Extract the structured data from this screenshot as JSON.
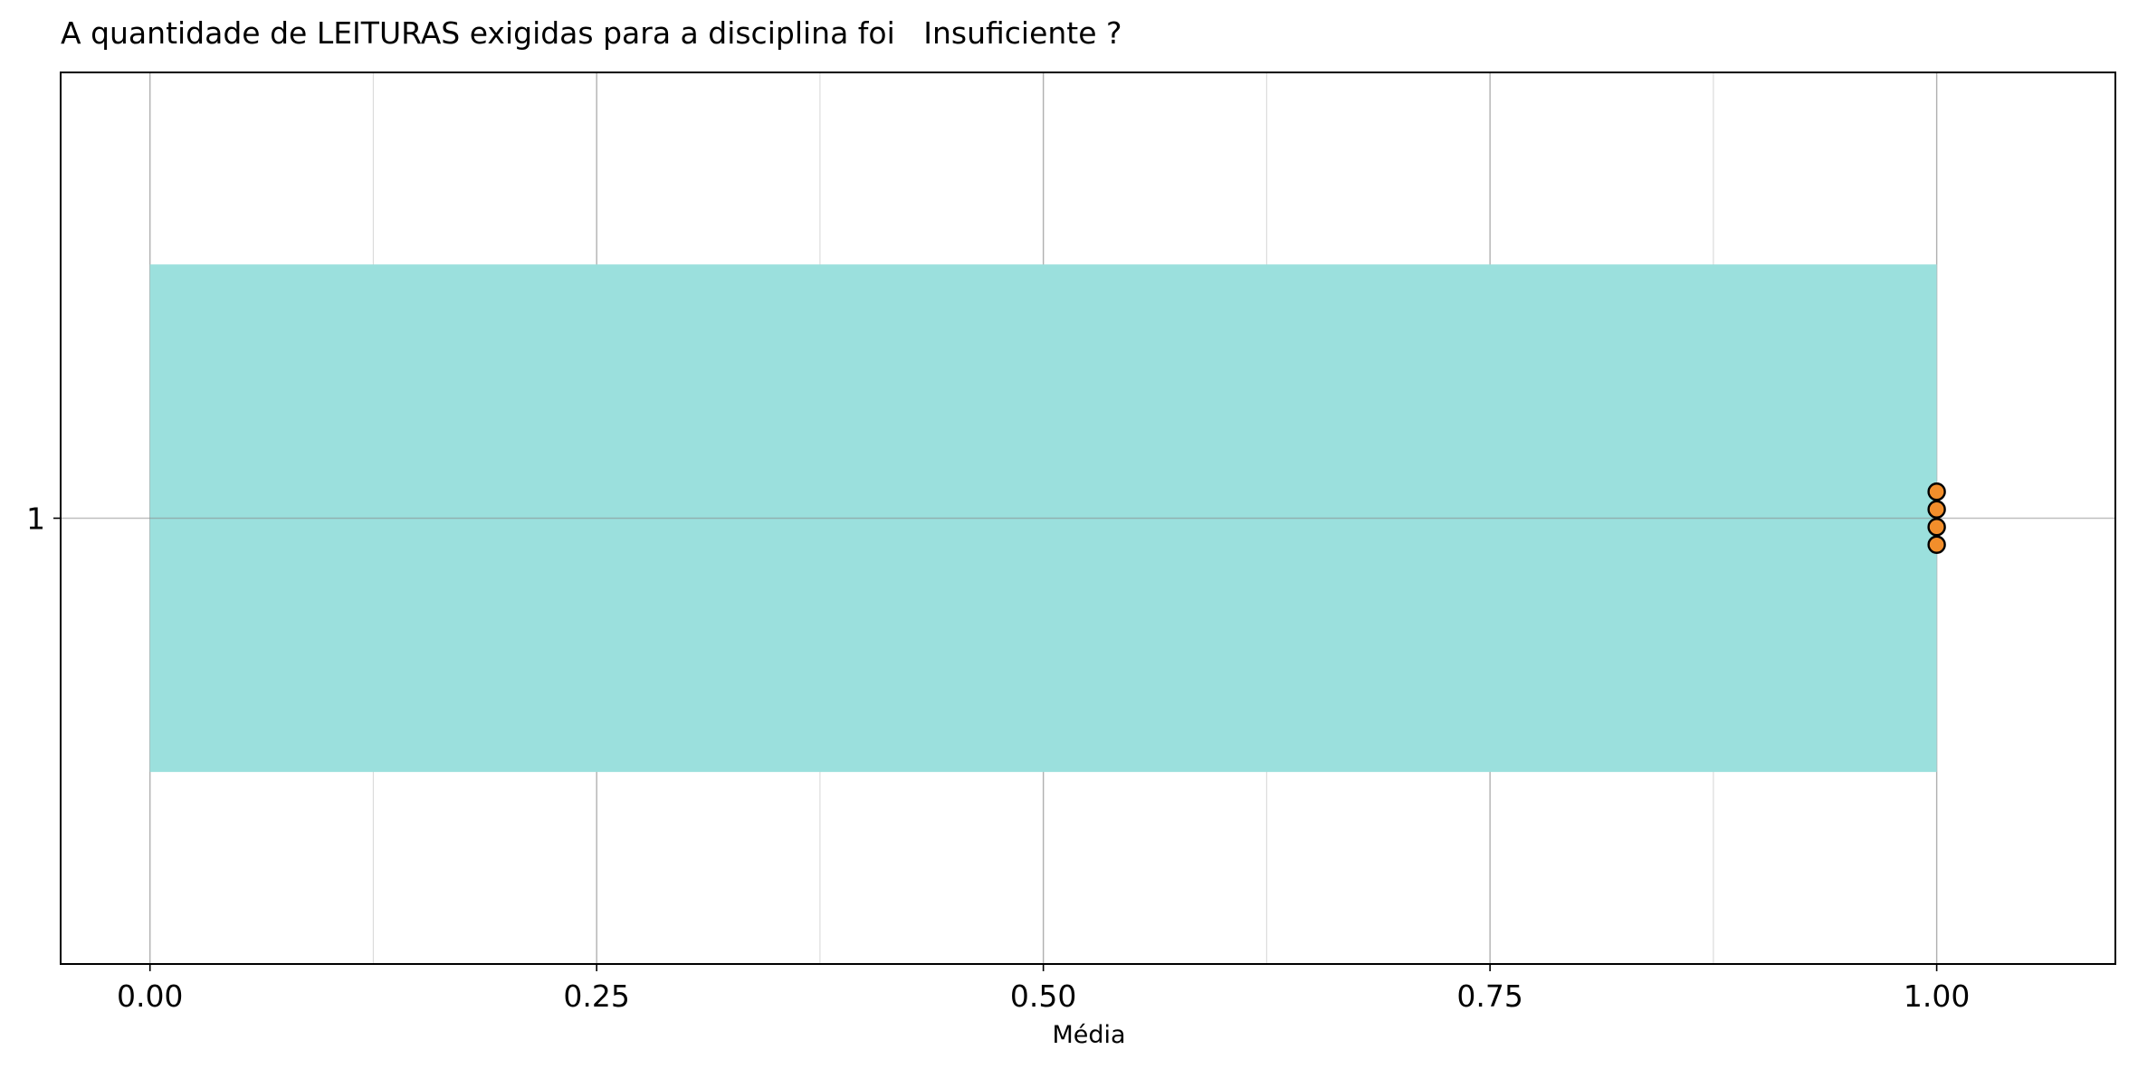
{
  "chart_data": {
    "type": "bar",
    "orientation": "horizontal",
    "title": "A quantidade de LEITURAS exigidas para a disciplina foi   Insuficiente ?",
    "xlabel": "Média",
    "ylabel": "",
    "categories": [
      "1"
    ],
    "values": [
      1.0
    ],
    "bar_color": "#9be0dd",
    "points": {
      "category": "1",
      "x": [
        1.0,
        1.0,
        1.0,
        1.0
      ],
      "color": "#f28e2b",
      "edgecolor": "#000000"
    },
    "xlim": [
      -0.05,
      1.1
    ],
    "xticks": [
      "0.00",
      "0.25",
      "0.50",
      "0.75",
      "1.00"
    ],
    "xtick_values": [
      0.0,
      0.25,
      0.5,
      0.75,
      1.0
    ],
    "grid": true
  }
}
